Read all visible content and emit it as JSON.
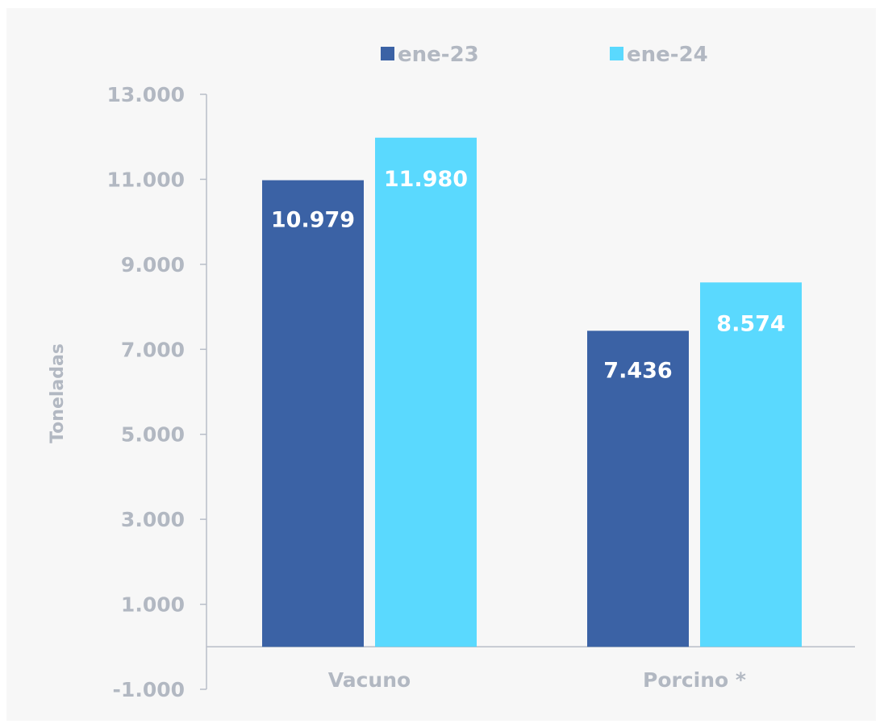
{
  "chart_data": {
    "type": "bar",
    "categories": [
      "Vacuno",
      "Porcino *"
    ],
    "series": [
      {
        "name": "ene-23",
        "values": [
          10979,
          7436
        ],
        "labels": [
          "10.979",
          "7.436"
        ],
        "color": "#3b62a5"
      },
      {
        "name": "ene-24",
        "values": [
          11980,
          8574
        ],
        "labels": [
          "11.980",
          "8.574"
        ],
        "color": "#5ad9fe"
      }
    ],
    "ylabel": "Toneladas",
    "ylim": [
      -1000,
      13000
    ],
    "yticks": [
      13000,
      11000,
      9000,
      7000,
      5000,
      3000,
      1000,
      -1000
    ],
    "ytick_labels": [
      "13.000",
      "11.000",
      "9.000",
      "7.000",
      "5.000",
      "3.000",
      "1.000",
      "-1.000"
    ],
    "legend_position": "top",
    "grid": false
  }
}
